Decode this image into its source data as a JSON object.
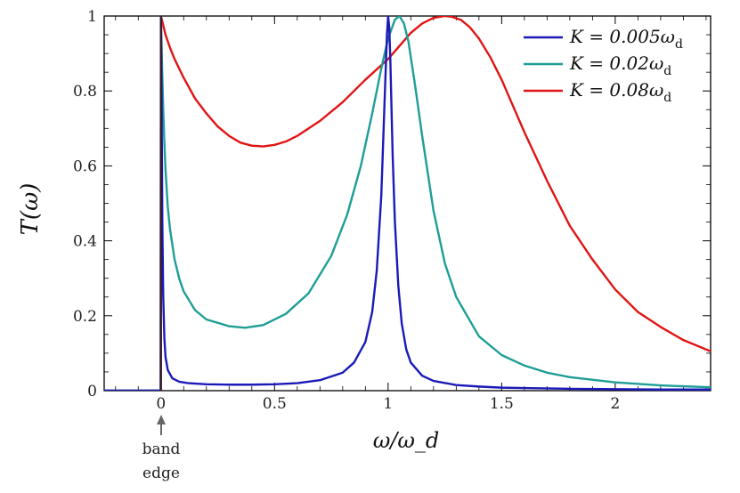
{
  "chart_data": {
    "type": "line",
    "xlabel": "ω/ω_d",
    "ylabel": "T(ω)",
    "xlim": [
      -0.25,
      2.42
    ],
    "ylim": [
      0,
      1
    ],
    "x_ticks": [
      0,
      0.5,
      1,
      1.5,
      2
    ],
    "x_tick_labels": [
      "0",
      "0.5",
      "1",
      "1.5",
      "2"
    ],
    "y_ticks": [
      0,
      0.2,
      0.4,
      0.6,
      0.8,
      1
    ],
    "y_tick_labels": [
      "0",
      "0.2",
      "0.4",
      "0.6",
      "0.8",
      "1"
    ],
    "legend_position": "top-right",
    "annotation": {
      "line1": "band",
      "line2": "edge",
      "x": 0
    },
    "series": [
      {
        "name": "K = 0.005ω_d",
        "label_main": "K = 0.005ω",
        "label_sub": "d",
        "color": "#1a1ab8",
        "x": [
          -0.25,
          -0.001,
          0,
          0.003,
          0.006,
          0.01,
          0.015,
          0.02,
          0.03,
          0.05,
          0.08,
          0.12,
          0.2,
          0.3,
          0.4,
          0.5,
          0.6,
          0.7,
          0.8,
          0.85,
          0.9,
          0.93,
          0.95,
          0.97,
          0.985,
          0.995,
          1.0,
          1.005,
          1.01,
          1.02,
          1.03,
          1.045,
          1.06,
          1.08,
          1.1,
          1.15,
          1.2,
          1.3,
          1.4,
          1.5,
          1.6,
          1.8,
          2.0,
          2.2,
          2.42
        ],
        "y": [
          0,
          0,
          1,
          0.75,
          0.45,
          0.25,
          0.14,
          0.09,
          0.055,
          0.033,
          0.024,
          0.02,
          0.017,
          0.016,
          0.016,
          0.017,
          0.02,
          0.028,
          0.048,
          0.075,
          0.13,
          0.21,
          0.32,
          0.52,
          0.78,
          0.95,
          1.0,
          0.97,
          0.88,
          0.63,
          0.45,
          0.28,
          0.18,
          0.11,
          0.075,
          0.04,
          0.026,
          0.015,
          0.011,
          0.008,
          0.007,
          0.005,
          0.004,
          0.003,
          0.003
        ]
      },
      {
        "name": "K = 0.02ω_d",
        "label_main": "K = 0.02ω",
        "label_sub": "d",
        "color": "#1e9e96",
        "x": [
          -0.25,
          -0.001,
          0,
          0.005,
          0.01,
          0.015,
          0.02,
          0.03,
          0.04,
          0.06,
          0.08,
          0.1,
          0.15,
          0.2,
          0.3,
          0.37,
          0.45,
          0.55,
          0.65,
          0.75,
          0.82,
          0.88,
          0.93,
          0.97,
          1.0,
          1.03,
          1.05,
          1.07,
          1.09,
          1.12,
          1.15,
          1.2,
          1.25,
          1.3,
          1.4,
          1.5,
          1.6,
          1.7,
          1.8,
          2.0,
          2.2,
          2.42
        ],
        "y": [
          0,
          0,
          1,
          0.86,
          0.75,
          0.66,
          0.59,
          0.49,
          0.43,
          0.35,
          0.3,
          0.265,
          0.215,
          0.19,
          0.172,
          0.168,
          0.175,
          0.205,
          0.26,
          0.36,
          0.47,
          0.6,
          0.74,
          0.86,
          0.94,
          0.99,
          1.0,
          0.98,
          0.93,
          0.81,
          0.68,
          0.48,
          0.34,
          0.25,
          0.145,
          0.095,
          0.067,
          0.048,
          0.036,
          0.022,
          0.014,
          0.009
        ]
      },
      {
        "name": "K = 0.08ω_d",
        "label_main": "K = 0.08ω",
        "label_sub": "d",
        "color": "#e01414",
        "x": [
          -0.25,
          -0.001,
          0,
          0.01,
          0.02,
          0.04,
          0.06,
          0.1,
          0.15,
          0.2,
          0.25,
          0.3,
          0.35,
          0.4,
          0.45,
          0.5,
          0.55,
          0.6,
          0.7,
          0.8,
          0.9,
          1.0,
          1.05,
          1.1,
          1.15,
          1.2,
          1.25,
          1.28,
          1.32,
          1.36,
          1.4,
          1.45,
          1.5,
          1.55,
          1.6,
          1.7,
          1.8,
          1.9,
          2.0,
          2.1,
          2.2,
          2.3,
          2.42
        ],
        "y": [
          0,
          0,
          1,
          0.975,
          0.95,
          0.915,
          0.885,
          0.835,
          0.78,
          0.74,
          0.705,
          0.68,
          0.662,
          0.654,
          0.652,
          0.656,
          0.665,
          0.68,
          0.72,
          0.77,
          0.83,
          0.885,
          0.92,
          0.955,
          0.98,
          0.995,
          1.0,
          0.998,
          0.99,
          0.97,
          0.94,
          0.89,
          0.83,
          0.76,
          0.69,
          0.56,
          0.44,
          0.35,
          0.27,
          0.21,
          0.17,
          0.135,
          0.105
        ]
      }
    ]
  }
}
